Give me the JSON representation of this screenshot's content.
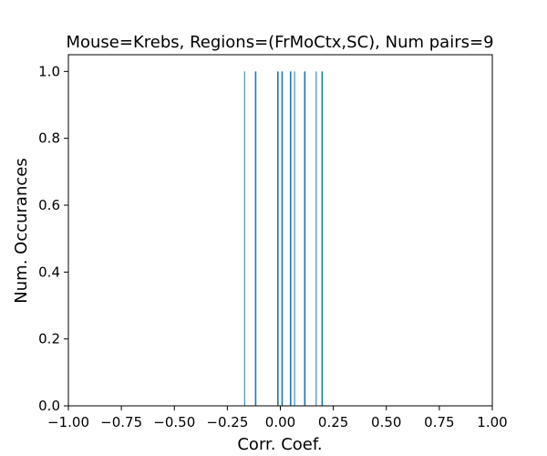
{
  "chart_data": {
    "type": "bar",
    "title": "Mouse=Krebs, Regions=(FrMoCtx,SC), Num pairs=9",
    "xlabel": "Corr. Coef.",
    "ylabel": "Num. Occurances",
    "xlim": [
      -1.0,
      1.0
    ],
    "ylim": [
      0.0,
      1.05
    ],
    "grid": false,
    "bar_color": "#1f77b4",
    "x_ticks": [
      "−1.00",
      "−0.75",
      "−0.50",
      "−0.25",
      "0.00",
      "0.25",
      "0.50",
      "0.75",
      "1.00"
    ],
    "y_ticks": [
      "0.0",
      "0.2",
      "0.4",
      "0.6",
      "0.8",
      "1.0"
    ],
    "x_tick_values": [
      -1.0,
      -0.75,
      -0.5,
      -0.25,
      0.0,
      0.25,
      0.5,
      0.75,
      1.0
    ],
    "y_tick_values": [
      0.0,
      0.2,
      0.4,
      0.6,
      0.8,
      1.0
    ],
    "bars": [
      {
        "x": -0.171,
        "width": 0.002,
        "height": 1
      },
      {
        "x": -0.12,
        "width": 0.007,
        "height": 1
      },
      {
        "x": -0.015,
        "width": 0.007,
        "height": 1
      },
      {
        "x": 0.005,
        "width": 0.007,
        "height": 1
      },
      {
        "x": 0.045,
        "width": 0.007,
        "height": 1
      },
      {
        "x": 0.065,
        "width": 0.004,
        "height": 1
      },
      {
        "x": 0.112,
        "width": 0.007,
        "height": 1
      },
      {
        "x": 0.167,
        "width": 0.004,
        "height": 1
      },
      {
        "x": 0.194,
        "width": 0.007,
        "height": 1
      }
    ]
  }
}
